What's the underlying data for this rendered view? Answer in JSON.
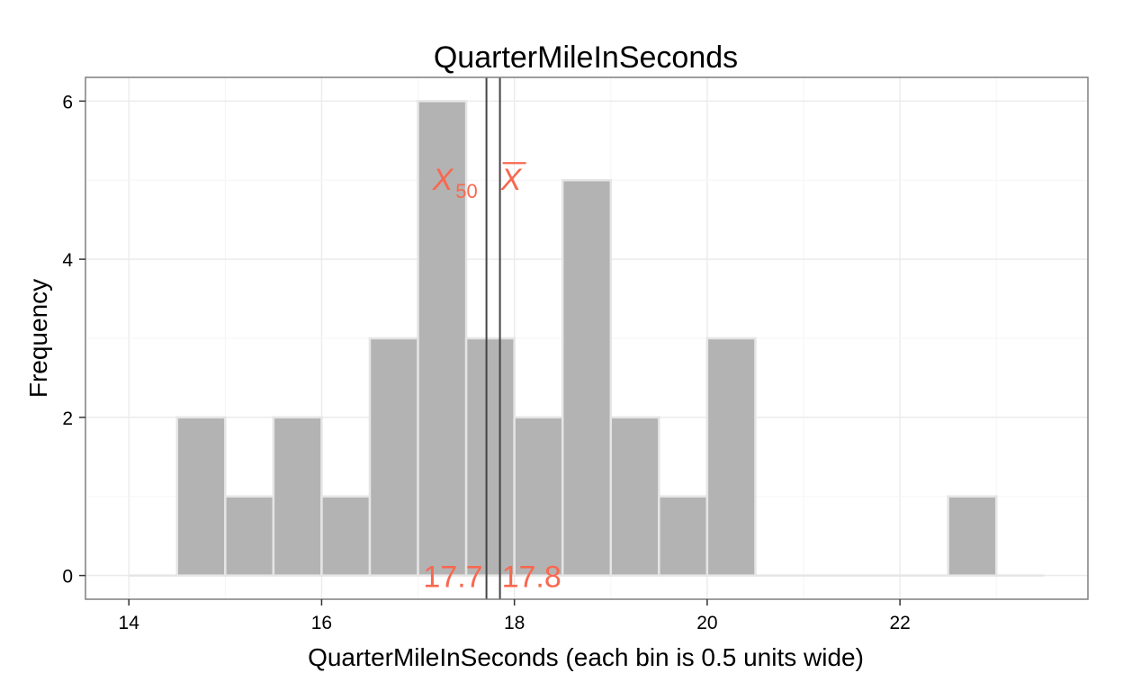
{
  "chart_data": {
    "type": "bar",
    "title": "QuarterMileInSeconds",
    "xlabel": "QuarterMileInSeconds (each bin is 0.5 units wide)",
    "ylabel": "Frequency",
    "bin_width": 0.5,
    "bins": [
      {
        "start": 14.0,
        "end": 14.5,
        "count": 0
      },
      {
        "start": 14.5,
        "end": 15.0,
        "count": 2
      },
      {
        "start": 15.0,
        "end": 15.5,
        "count": 1
      },
      {
        "start": 15.5,
        "end": 16.0,
        "count": 2
      },
      {
        "start": 16.0,
        "end": 16.5,
        "count": 1
      },
      {
        "start": 16.5,
        "end": 17.0,
        "count": 3
      },
      {
        "start": 17.0,
        "end": 17.5,
        "count": 6
      },
      {
        "start": 17.5,
        "end": 18.0,
        "count": 3
      },
      {
        "start": 18.0,
        "end": 18.5,
        "count": 2
      },
      {
        "start": 18.5,
        "end": 19.0,
        "count": 5
      },
      {
        "start": 19.0,
        "end": 19.5,
        "count": 2
      },
      {
        "start": 19.5,
        "end": 20.0,
        "count": 1
      },
      {
        "start": 20.0,
        "end": 20.5,
        "count": 3
      },
      {
        "start": 20.5,
        "end": 21.0,
        "count": 0
      },
      {
        "start": 21.0,
        "end": 21.5,
        "count": 0
      },
      {
        "start": 21.5,
        "end": 22.0,
        "count": 0
      },
      {
        "start": 22.0,
        "end": 22.5,
        "count": 0
      },
      {
        "start": 22.5,
        "end": 23.0,
        "count": 1
      },
      {
        "start": 23.0,
        "end": 23.5,
        "count": 0
      }
    ],
    "xlim": [
      13.55,
      23.95
    ],
    "ylim": [
      -0.3,
      6.3
    ],
    "x_ticks": [
      14,
      16,
      18,
      20,
      22
    ],
    "y_ticks": [
      0,
      2,
      4,
      6
    ],
    "grid": true,
    "colors": {
      "bar_fill": "#b3b3b3",
      "bar_edge": "#e5e5e5",
      "stat_text": "#f8684f",
      "stat_line": "#444444"
    },
    "median": {
      "value": 17.71,
      "label_value": "17.7",
      "symbol": "X",
      "subscript": "50"
    },
    "mean": {
      "value": 17.85,
      "label_value": "17.8",
      "symbol": "X"
    }
  }
}
